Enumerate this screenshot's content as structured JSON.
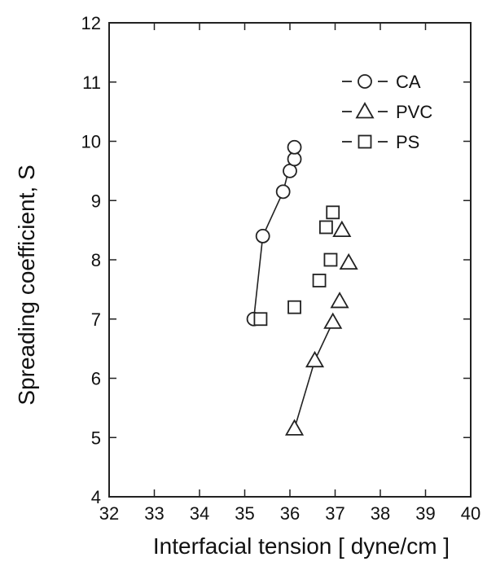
{
  "chart_data": {
    "type": "scatter",
    "xlabel": "Interfacial tension [ dyne/cm ]",
    "ylabel": "Spreading coefficient, S",
    "xlim": [
      32,
      40
    ],
    "ylim": [
      4,
      12
    ],
    "xticks": [
      32,
      33,
      34,
      35,
      36,
      37,
      38,
      39,
      40
    ],
    "yticks": [
      4,
      5,
      6,
      7,
      8,
      9,
      10,
      11,
      12
    ],
    "grid": false,
    "legend_position": "top-right",
    "series": [
      {
        "name": "CA",
        "marker": "circle",
        "line": true,
        "points": [
          [
            35.2,
            7.0
          ],
          [
            35.4,
            8.4
          ],
          [
            35.85,
            9.15
          ],
          [
            36.0,
            9.5
          ],
          [
            36.1,
            9.7
          ],
          [
            36.1,
            9.9
          ]
        ]
      },
      {
        "name": "PVC",
        "marker": "triangle",
        "line": true,
        "points": [
          [
            36.1,
            5.15
          ],
          [
            36.55,
            6.3
          ],
          [
            36.95,
            6.95
          ],
          [
            37.1,
            7.3
          ],
          [
            37.3,
            7.95
          ],
          [
            37.15,
            8.5
          ]
        ]
      },
      {
        "name": "PS",
        "marker": "square",
        "line": false,
        "points": [
          [
            35.35,
            7.0
          ],
          [
            36.1,
            7.2
          ],
          [
            36.65,
            7.65
          ],
          [
            36.9,
            8.0
          ],
          [
            36.8,
            8.55
          ],
          [
            36.95,
            8.8
          ]
        ]
      }
    ],
    "line_fits": [
      {
        "series": "CA",
        "points": [
          [
            35.2,
            7.0
          ],
          [
            35.4,
            8.4
          ],
          [
            35.85,
            9.15
          ],
          [
            36.1,
            9.9
          ]
        ]
      },
      {
        "series": "PVC",
        "points": [
          [
            36.1,
            5.15
          ],
          [
            36.55,
            6.3
          ],
          [
            36.95,
            6.95
          ]
        ]
      }
    ]
  }
}
